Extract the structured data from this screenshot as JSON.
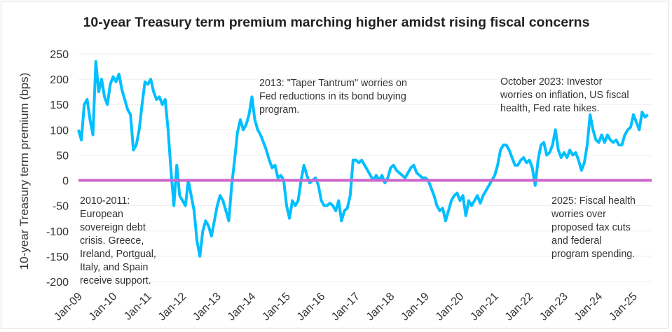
{
  "chart_data": {
    "type": "line",
    "title": "10-year Treasury term premium marching higher amidst rising fiscal concerns",
    "ylabel": "10-year Treasury term premium (bps)",
    "xlabel": "",
    "ylim": [
      -200,
      250
    ],
    "yticks": [
      250,
      200,
      150,
      100,
      50,
      0,
      -50,
      -100,
      -150,
      -200
    ],
    "xticks": [
      "Jan-09",
      "Jan-10",
      "Jan-11",
      "Jan-12",
      "Jan-13",
      "Jan-14",
      "Jan-15",
      "Jan-16",
      "Jan-17",
      "Jan-18",
      "Jan-19",
      "Jan-20",
      "Jan-21",
      "Jan-22",
      "Jan-23",
      "Jan-24",
      "Jan-25"
    ],
    "grid": true,
    "colors": {
      "series": "#00bfff",
      "zero_line": "#cc66cc",
      "grid": "#eeeeee"
    },
    "x_start": "2009-01",
    "x_frequency": "monthly",
    "series": [
      {
        "values": [
          100,
          80,
          150,
          160,
          120,
          90,
          235,
          175,
          200,
          165,
          150,
          190,
          205,
          195,
          210,
          180,
          160,
          140,
          130,
          60,
          70,
          100,
          150,
          195,
          190,
          200,
          175,
          160,
          165,
          150,
          160,
          100,
          20,
          -50,
          30,
          -30,
          -40,
          -50,
          0,
          -30,
          -60,
          -120,
          -150,
          -100,
          -80,
          -90,
          -110,
          -80,
          -50,
          -30,
          -40,
          -60,
          -80,
          -10,
          40,
          95,
          120,
          100,
          110,
          130,
          165,
          120,
          100,
          90,
          75,
          60,
          40,
          25,
          30,
          5,
          10,
          0,
          -50,
          -75,
          -40,
          -50,
          -40,
          0,
          30,
          10,
          -5,
          0,
          5,
          -10,
          -40,
          -50,
          -50,
          -45,
          -50,
          -60,
          -40,
          -80,
          -60,
          -55,
          -30,
          40,
          40,
          35,
          40,
          30,
          20,
          10,
          0,
          10,
          0,
          10,
          -5,
          5,
          25,
          30,
          20,
          15,
          10,
          5,
          15,
          25,
          30,
          15,
          10,
          5,
          5,
          0,
          -15,
          -30,
          -50,
          -60,
          -55,
          -80,
          -60,
          -40,
          -30,
          -25,
          -40,
          -30,
          -70,
          -40,
          -50,
          -40,
          -30,
          -45,
          -30,
          -20,
          -10,
          0,
          10,
          30,
          60,
          70,
          70,
          60,
          45,
          30,
          30,
          40,
          45,
          35,
          40,
          25,
          -10,
          40,
          70,
          75,
          50,
          55,
          70,
          100,
          60,
          45,
          55,
          45,
          60,
          50,
          55,
          40,
          20,
          35,
          70,
          130,
          100,
          80,
          75,
          90,
          75,
          90,
          80,
          75,
          80,
          70,
          70,
          90,
          100,
          105,
          130,
          115,
          100,
          135,
          125,
          130
        ]
      }
    ],
    "reference_line": {
      "y": 0
    },
    "annotations": [
      [
        "2010-2011:",
        "European",
        "sovereign debt",
        "crisis. Greece,",
        "Ireland, Portgual,",
        "Italy, and Spain",
        "receive support."
      ],
      [
        "2013: \"Taper Tantrum\" worries on",
        "Fed reductions in its bond buying",
        "program."
      ],
      [
        "October 2023: Investor",
        "worries on inflation, US fiscal",
        "health, Fed rate hikes."
      ],
      [
        "2025: Fiscal health",
        "worries over",
        "proposed tax cuts",
        "and federal",
        "program spending."
      ]
    ]
  }
}
